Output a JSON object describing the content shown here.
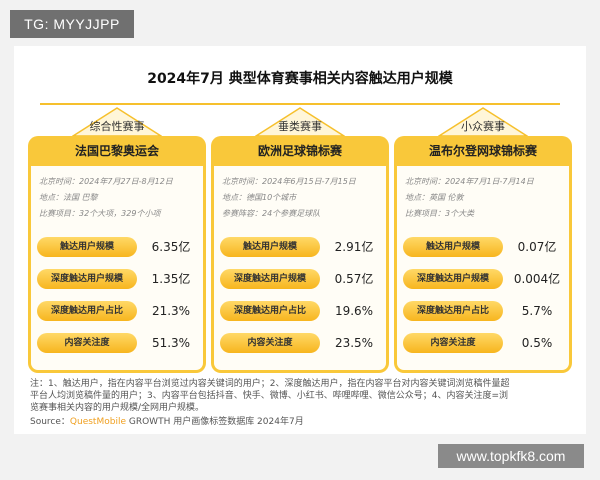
{
  "tag": "TG: MYYJJPP",
  "chart_data": {
    "type": "table",
    "title": "2024年7月 典型体育赛事相关内容触达用户规模",
    "metric_labels": [
      "触达用户规模",
      "深度触达用户规模",
      "深度触达用户占比",
      "内容关注度"
    ],
    "columns": [
      {
        "category": "综合性赛事",
        "event": "法国巴黎奥运会",
        "info": [
          "北京时间：2024年7月27日-8月12日",
          "地点：法国 巴黎",
          "比赛项目：32个大项，329个小项"
        ],
        "values": [
          "6.35亿",
          "1.35亿",
          "21.3%",
          "51.3%"
        ]
      },
      {
        "category": "垂类赛事",
        "event": "欧洲足球锦标赛",
        "info": [
          "北京时间：2024年6月15日-7月15日",
          "地点：德国10个城市",
          "参赛阵容：24个参赛足球队"
        ],
        "values": [
          "2.91亿",
          "0.57亿",
          "19.6%",
          "23.5%"
        ]
      },
      {
        "category": "小众赛事",
        "event": "温布尔登网球锦标赛",
        "info": [
          "北京时间：2024年7月1日-7月14日",
          "地点：英国 伦敦",
          "比赛项目：3个大类"
        ],
        "values": [
          "0.07亿",
          "0.004亿",
          "5.7%",
          "0.5%"
        ]
      }
    ]
  },
  "notes": {
    "line1": "注：1、触达用户，指在内容平台浏览过内容关键词的用户；2、深度触达用户，指在内容平台对内容关键词浏览稿件量超",
    "line2": "平台人均浏览稿件量的用户；3、内容平台包括抖音、快手、微博、小红书、哔哩哔哩、微信公众号；4、内容关注度=浏",
    "line3": "览赛事相关内容的用户规模/全网用户规模。"
  },
  "source": {
    "prefix": "Source：",
    "brand": "QuestMobile",
    "suffix": " GROWTH 用户画像标签数据库 2024年7月"
  },
  "watermark": "www.topkfk8.com",
  "colors": {
    "accent": "#f9c83a",
    "pill": "#f7b51e"
  }
}
